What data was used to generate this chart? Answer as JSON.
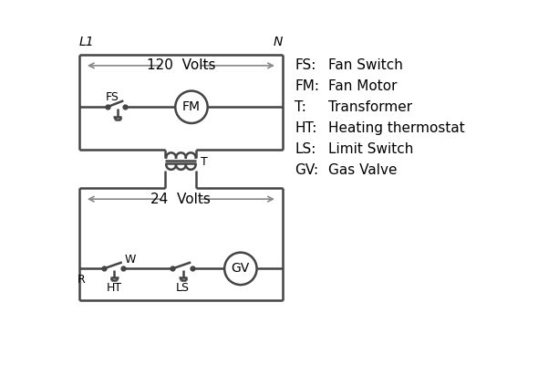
{
  "bg_color": "#ffffff",
  "wire_color": "#444444",
  "arrow_color": "#888888",
  "line_width": 1.8,
  "legend": {
    "FS": "Fan Switch",
    "FM": "Fan Motor",
    "T": "Transformer",
    "HT": "Heating thermostat",
    "LS": "Limit Switch",
    "GV": "Gas Valve"
  },
  "L1_label": "L1",
  "N_label": "N",
  "volts120": "120  Volts",
  "volts24": "24  Volts"
}
